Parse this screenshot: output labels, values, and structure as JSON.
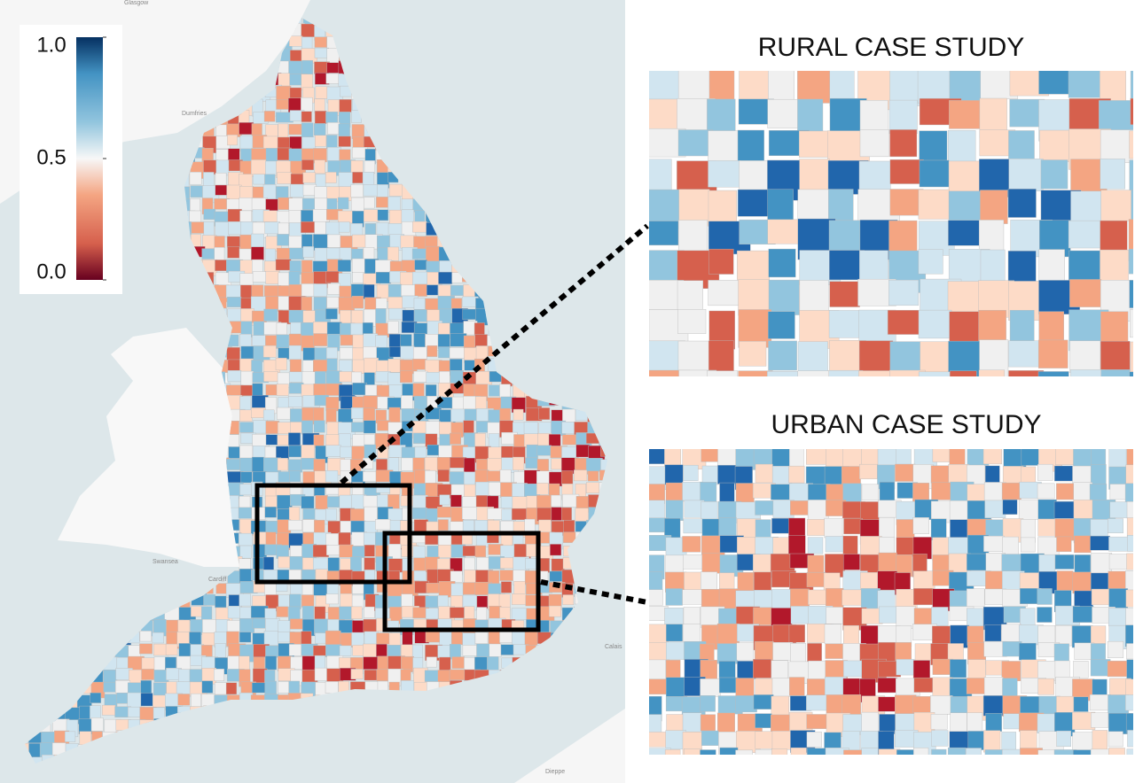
{
  "legend": {
    "lim": [
      0,
      1
    ],
    "ticks": [
      {
        "value": 1,
        "label": "1.0"
      },
      0.5,
      {
        "value": 0,
        "label": "0.0"
      }
    ]
  },
  "insets": [
    {
      "title": "RURAL CASE STUDY"
    },
    {
      "title": "URBAN CASE STUDY"
    }
  ],
  "place_labels": [
    "Glasgow",
    "Dumfries",
    "Cardiff",
    "Swansea",
    "Calais",
    "Dieppe"
  ]
}
